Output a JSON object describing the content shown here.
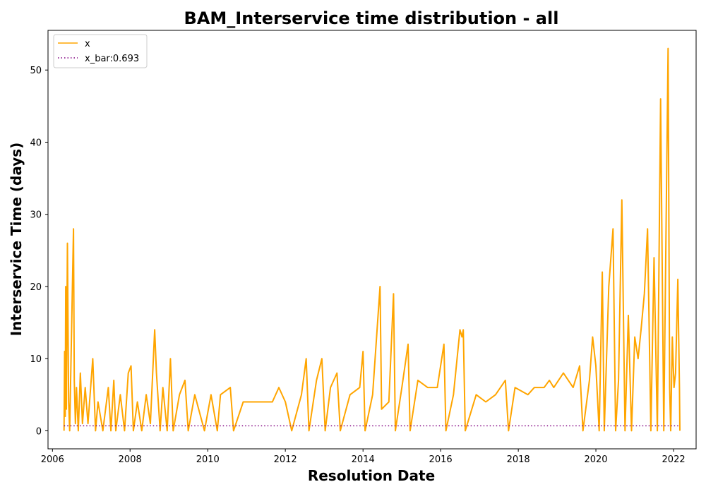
{
  "chart_data": {
    "type": "line",
    "title": "BAM_Interservice time distribution - all",
    "xlabel": "Resolution Date",
    "ylabel": "Interservice Time (days)",
    "xlim": [
      "2005-11-20",
      "2022-08-01"
    ],
    "ylim": [
      -2.5,
      55.5
    ],
    "xticks": [
      "2006",
      "2008",
      "2010",
      "2012",
      "2014",
      "2016",
      "2018",
      "2020",
      "2022"
    ],
    "yticks": [
      0,
      10,
      20,
      30,
      40,
      50
    ],
    "grid": false,
    "legend_position": "top-left",
    "colors": {
      "x": "#ffa500",
      "x_bar": "#800080"
    },
    "series": [
      {
        "name": "x",
        "style": "solid",
        "points": [
          [
            "2006-04-20",
            0
          ],
          [
            "2006-04-25",
            11
          ],
          [
            "2006-05-01",
            2
          ],
          [
            "2006-05-06",
            20
          ],
          [
            "2006-05-12",
            3
          ],
          [
            "2006-05-22",
            26
          ],
          [
            "2006-06-02",
            4
          ],
          [
            "2006-06-12",
            0
          ],
          [
            "2006-07-18",
            28
          ],
          [
            "2006-07-25",
            7
          ],
          [
            "2006-08-05",
            1
          ],
          [
            "2006-08-15",
            6
          ],
          [
            "2006-09-01",
            0
          ],
          [
            "2006-09-20",
            8
          ],
          [
            "2006-10-10",
            1
          ],
          [
            "2006-11-05",
            6
          ],
          [
            "2006-12-01",
            1
          ],
          [
            "2007-01-15",
            10
          ],
          [
            "2007-02-10",
            0
          ],
          [
            "2007-03-05",
            4
          ],
          [
            "2007-04-20",
            0
          ],
          [
            "2007-06-10",
            6
          ],
          [
            "2007-07-05",
            0
          ],
          [
            "2007-08-01",
            7
          ],
          [
            "2007-08-20",
            0
          ],
          [
            "2007-10-01",
            5
          ],
          [
            "2007-11-10",
            0
          ],
          [
            "2007-12-15",
            8
          ],
          [
            "2008-01-10",
            9
          ],
          [
            "2008-02-01",
            0
          ],
          [
            "2008-03-10",
            4
          ],
          [
            "2008-04-20",
            0
          ],
          [
            "2008-06-01",
            5
          ],
          [
            "2008-07-10",
            1
          ],
          [
            "2008-08-20",
            14
          ],
          [
            "2008-09-05",
            8
          ],
          [
            "2008-10-10",
            0
          ],
          [
            "2008-11-05",
            6
          ],
          [
            "2008-12-15",
            0
          ],
          [
            "2009-01-15",
            10
          ],
          [
            "2009-02-10",
            0
          ],
          [
            "2009-04-10",
            5
          ],
          [
            "2009-06-01",
            7
          ],
          [
            "2009-07-01",
            0
          ],
          [
            "2009-09-01",
            5
          ],
          [
            "2009-12-01",
            0
          ],
          [
            "2010-02-01",
            5
          ],
          [
            "2010-04-01",
            0
          ],
          [
            "2010-05-01",
            5
          ],
          [
            "2010-08-01",
            6
          ],
          [
            "2010-09-01",
            0
          ],
          [
            "2010-12-01",
            4
          ],
          [
            "2011-06-01",
            4
          ],
          [
            "2011-09-01",
            4
          ],
          [
            "2011-11-01",
            6
          ],
          [
            "2012-01-01",
            4
          ],
          [
            "2012-03-01",
            0
          ],
          [
            "2012-06-01",
            5
          ],
          [
            "2012-07-15",
            10
          ],
          [
            "2012-08-10",
            0
          ],
          [
            "2012-10-20",
            7
          ],
          [
            "2012-12-10",
            10
          ],
          [
            "2013-01-10",
            0
          ],
          [
            "2013-03-01",
            6
          ],
          [
            "2013-05-01",
            8
          ],
          [
            "2013-06-01",
            0
          ],
          [
            "2013-09-01",
            5
          ],
          [
            "2013-12-01",
            6
          ],
          [
            "2014-01-01",
            11
          ],
          [
            "2014-01-20",
            0
          ],
          [
            "2014-04-01",
            5
          ],
          [
            "2014-06-10",
            20
          ],
          [
            "2014-06-25",
            3
          ],
          [
            "2014-09-01",
            4
          ],
          [
            "2014-10-15",
            19
          ],
          [
            "2014-11-01",
            0
          ],
          [
            "2015-01-01",
            6
          ],
          [
            "2015-03-01",
            12
          ],
          [
            "2015-03-20",
            0
          ],
          [
            "2015-06-01",
            7
          ],
          [
            "2015-09-01",
            6
          ],
          [
            "2015-12-01",
            6
          ],
          [
            "2016-02-01",
            12
          ],
          [
            "2016-02-20",
            0
          ],
          [
            "2016-05-01",
            5
          ],
          [
            "2016-07-01",
            14
          ],
          [
            "2016-07-20",
            13
          ],
          [
            "2016-08-01",
            14
          ],
          [
            "2016-08-20",
            0
          ],
          [
            "2016-12-01",
            5
          ],
          [
            "2017-03-01",
            4
          ],
          [
            "2017-06-01",
            5
          ],
          [
            "2017-09-01",
            7
          ],
          [
            "2017-10-01",
            0
          ],
          [
            "2017-12-01",
            6
          ],
          [
            "2018-04-01",
            5
          ],
          [
            "2018-06-01",
            6
          ],
          [
            "2018-09-01",
            6
          ],
          [
            "2018-10-20",
            7
          ],
          [
            "2018-12-01",
            6
          ],
          [
            "2019-03-01",
            8
          ],
          [
            "2019-06-01",
            6
          ],
          [
            "2019-08-01",
            9
          ],
          [
            "2019-09-01",
            0
          ],
          [
            "2019-11-01",
            7
          ],
          [
            "2019-12-01",
            13
          ],
          [
            "2020-01-01",
            9
          ],
          [
            "2020-02-01",
            0
          ],
          [
            "2020-03-01",
            22
          ],
          [
            "2020-03-20",
            0
          ],
          [
            "2020-05-01",
            20
          ],
          [
            "2020-06-10",
            28
          ],
          [
            "2020-07-05",
            0
          ],
          [
            "2020-08-01",
            7
          ],
          [
            "2020-09-01",
            32
          ],
          [
            "2020-10-01",
            0
          ],
          [
            "2020-11-01",
            16
          ],
          [
            "2020-12-01",
            0
          ],
          [
            "2021-01-01",
            13
          ],
          [
            "2021-02-01",
            10
          ],
          [
            "2021-03-01",
            14
          ],
          [
            "2021-04-01",
            19
          ],
          [
            "2021-05-01",
            28
          ],
          [
            "2021-06-01",
            0
          ],
          [
            "2021-07-01",
            24
          ],
          [
            "2021-08-01",
            0
          ],
          [
            "2021-09-01",
            46
          ],
          [
            "2021-10-01",
            0
          ],
          [
            "2021-11-10",
            53
          ],
          [
            "2021-11-25",
            6
          ],
          [
            "2021-12-05",
            0
          ],
          [
            "2021-12-20",
            13
          ],
          [
            "2022-01-05",
            6
          ],
          [
            "2022-01-20",
            8
          ],
          [
            "2022-02-10",
            21
          ],
          [
            "2022-02-25",
            6
          ],
          [
            "2022-03-01",
            0
          ]
        ]
      },
      {
        "name": "x_bar:0.693",
        "style": "dotted",
        "points": [
          [
            "2006-04-20",
            0.693
          ],
          [
            "2022-03-01",
            0.693
          ]
        ]
      }
    ]
  }
}
